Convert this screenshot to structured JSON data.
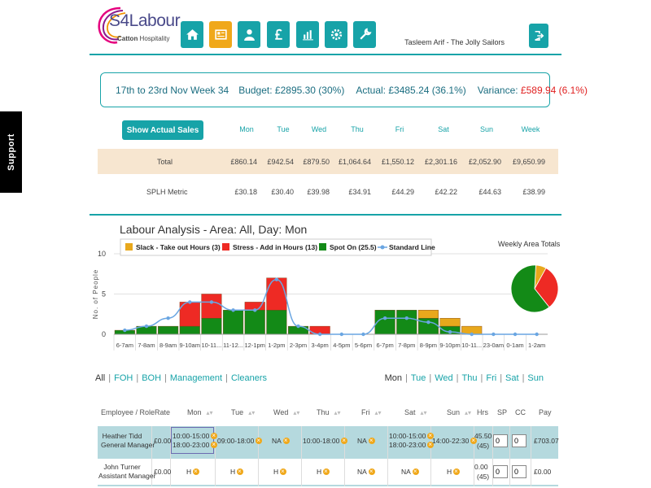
{
  "support_label": "Support",
  "logo": {
    "brand": "S4Labour",
    "sub_bold": "Catton",
    "sub_rest": " Hospitality"
  },
  "nav": [
    {
      "name": "home-icon"
    },
    {
      "name": "rota-icon",
      "active": true
    },
    {
      "name": "user-icon"
    },
    {
      "name": "pound-icon"
    },
    {
      "name": "chart-icon"
    },
    {
      "name": "gear-icon"
    },
    {
      "name": "wrench-icon"
    }
  ],
  "user": "Tasleem Arif - The Jolly Sailors",
  "summary": {
    "period": "17th to 23rd Nov Week 34",
    "budget_label": "Budget:",
    "budget_value": "£2895.30 (30%)",
    "actual_label": "Actual:",
    "actual_value": "£3485.24 (36.1%)",
    "variance_label": "Variance:",
    "variance_value": "£589.94 (6.1%)"
  },
  "sales": {
    "button": "Show Actual Sales",
    "days": [
      "Mon",
      "Tue",
      "Wed",
      "Thu",
      "Fri",
      "Sat",
      "Sun",
      "Week"
    ],
    "total_label": "Total",
    "total": [
      "£860.14",
      "£942.54",
      "£879.50",
      "£1,064.64",
      "£1,550.12",
      "£2,301.16",
      "£2,052.90",
      "£9,650.99"
    ],
    "splh_label": "SPLH Metric",
    "splh": [
      "£30.18",
      "£30.40",
      "£39.98",
      "£34.91",
      "£44.29",
      "£42.22",
      "£44.63",
      "£38.99"
    ]
  },
  "chart_data": {
    "type": "bar",
    "title": "Labour Analysis - Area: All, Day: Mon",
    "ylabel": "No. of People",
    "ylim": [
      0,
      10
    ],
    "yticks": [
      0,
      5,
      10
    ],
    "categories": [
      "6-7am",
      "7-8am",
      "8-9am",
      "9-10am",
      "10-11...",
      "11-12...",
      "12-1pm",
      "1-2pm",
      "2-3pm",
      "3-4pm",
      "4-5pm",
      "5-6pm",
      "6-7pm",
      "7-8pm",
      "8-9pm",
      "9-10pm",
      "10-11...",
      "23-0am",
      "0-1am",
      "1-2am"
    ],
    "series": [
      {
        "name": "Slack - Take out Hours (3)",
        "color": "#e8a81c",
        "values": [
          0,
          0,
          0,
          0,
          0,
          0,
          0,
          0,
          0,
          0,
          0,
          0,
          0,
          0,
          1,
          1,
          1,
          0,
          0,
          0
        ]
      },
      {
        "name": "Stress - Add in Hours (13)",
        "color": "#ee2a24",
        "values": [
          0,
          0,
          0,
          3,
          3,
          0,
          1,
          4,
          0,
          1,
          0,
          0,
          0,
          0,
          0,
          0,
          0,
          0,
          0,
          0
        ]
      },
      {
        "name": "Spot On (25.5)",
        "color": "#138a17",
        "values": [
          0.5,
          1,
          1,
          1,
          2,
          3,
          3,
          3,
          1,
          0,
          0,
          0,
          3,
          3,
          2,
          1,
          0,
          0,
          0,
          0
        ]
      },
      {
        "name": "Standard Line",
        "color": "#6aa6e2",
        "values": [
          0.5,
          1,
          2,
          4,
          4,
          3,
          3,
          6.8,
          1,
          0,
          0,
          0,
          2,
          2,
          1.5,
          0.3,
          0,
          0,
          0,
          0
        ]
      }
    ],
    "pie_label": "Weekly Area Totals",
    "pie": [
      {
        "name": "Slack",
        "value": 3,
        "color": "#e8a81c"
      },
      {
        "name": "Stress",
        "value": 13,
        "color": "#ee2a24"
      },
      {
        "name": "Spot On",
        "value": 25.5,
        "color": "#138a17"
      }
    ]
  },
  "filters": {
    "areas": [
      "All",
      "FOH",
      "BOH",
      "Management",
      "Cleaners"
    ],
    "days": [
      "Mon",
      "Tue",
      "Wed",
      "Thu",
      "Fri",
      "Sat",
      "Sun"
    ]
  },
  "staff_table": {
    "headers": [
      "Employee / Role",
      "Rate",
      "Mon",
      "Tue",
      "Wed",
      "Thu",
      "Fri",
      "Sat",
      "Sun",
      "Hrs",
      "SP",
      "CC",
      "Pay"
    ],
    "rows": [
      {
        "name": "Heather Tidd",
        "role": "General Manager",
        "rate": "£0.00",
        "mon": [
          "10:00-15:00",
          "18:00-23:00"
        ],
        "tue": "09:00-18:00",
        "wed": "NA",
        "thu": "10:00-18:00",
        "fri": "NA",
        "sat": [
          "10:00-15:00",
          "18:00-23:00"
        ],
        "sun": "14:00-22:30",
        "hrs": "45.50",
        "hrs2": "(45)",
        "sp": "0",
        "cc": "0",
        "pay": "£703.07"
      },
      {
        "name": "John Turner",
        "role": "Assistant Manager",
        "rate": "£0.00",
        "mon": "H",
        "tue": "H",
        "wed": "H",
        "thu": "H",
        "fri": "NA",
        "sat": "NA",
        "sun": "H",
        "hrs": "0.00",
        "hrs2": "(45)",
        "sp": "0",
        "cc": "0",
        "pay": "£0.00"
      }
    ]
  }
}
